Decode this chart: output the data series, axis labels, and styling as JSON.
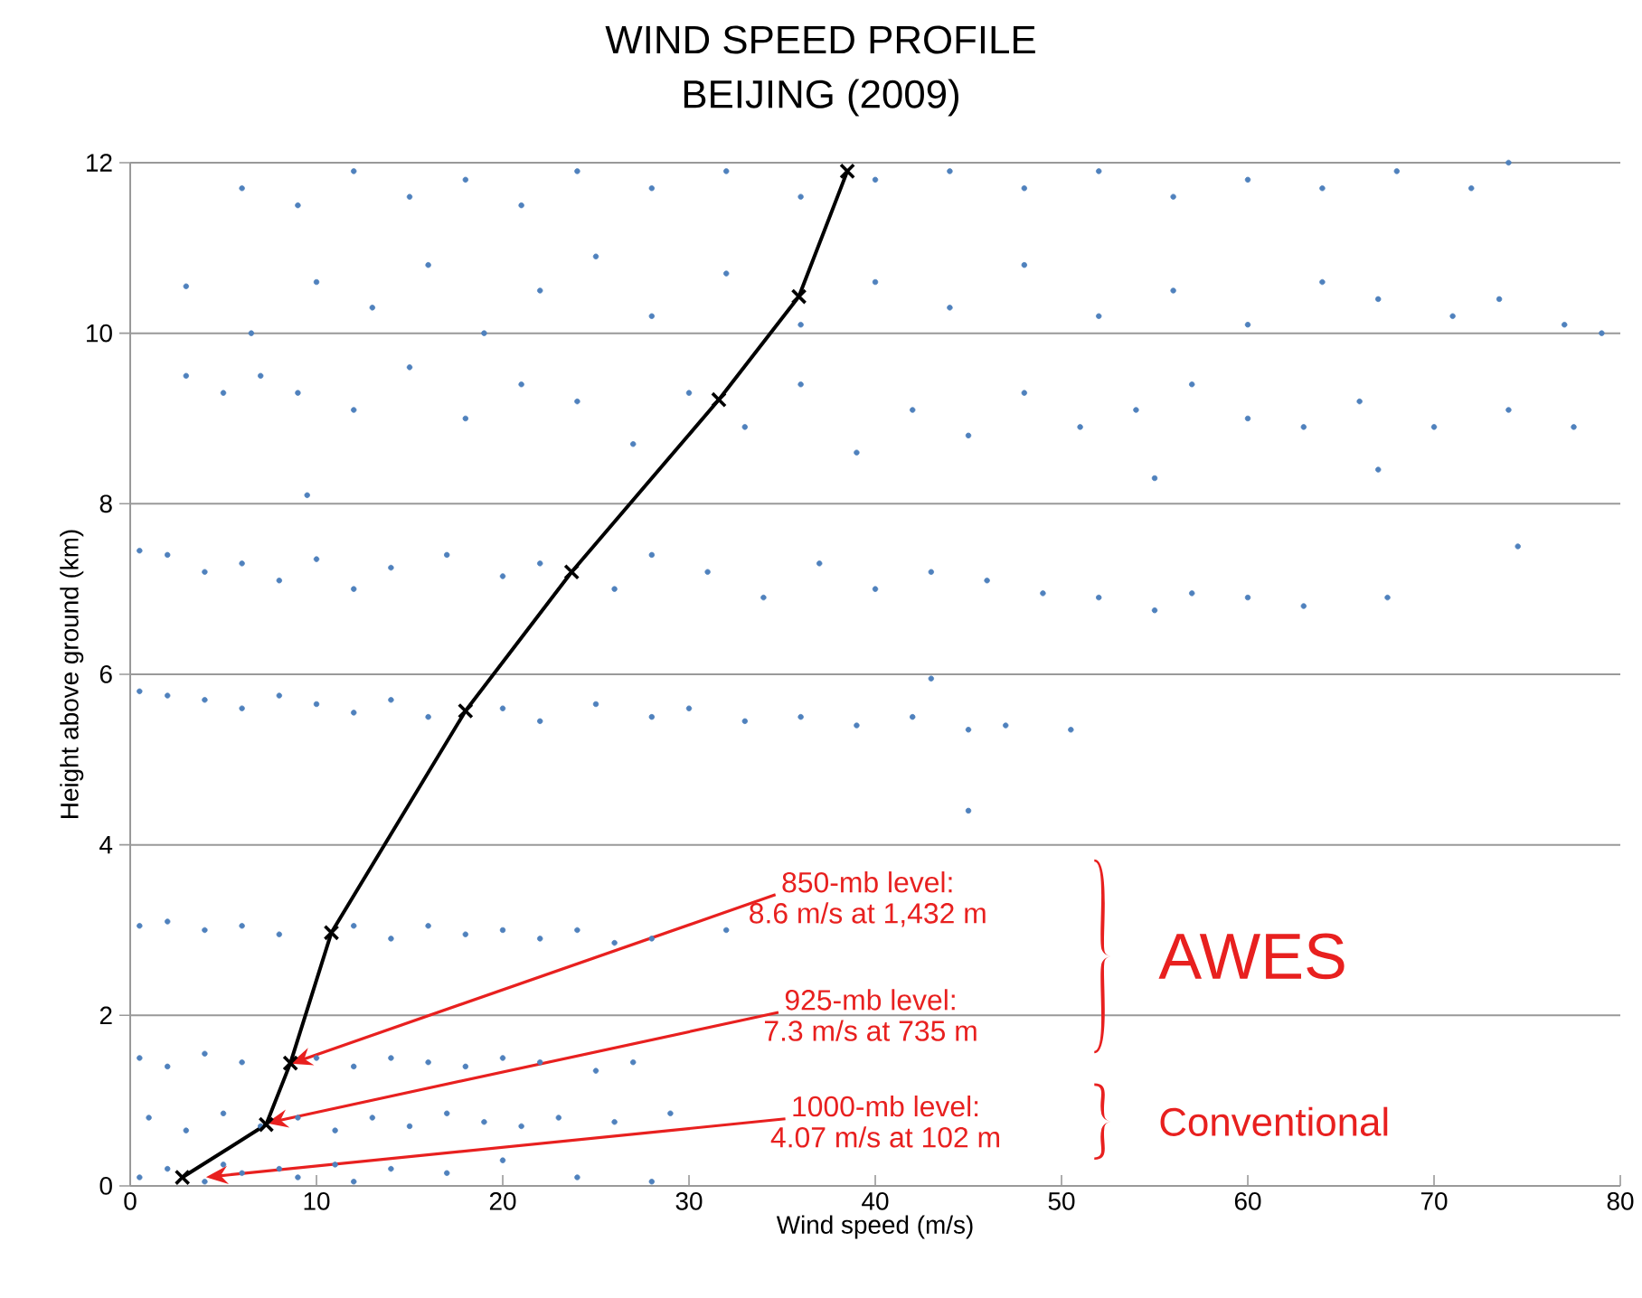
{
  "chart_data": {
    "type": "scatter",
    "title": "WIND SPEED PROFILE",
    "subtitle": "BEIJING (2009)",
    "xlabel": "Wind speed (m/s)",
    "ylabel": "Height above ground (km)",
    "xlim": [
      0,
      80
    ],
    "ylim": [
      0,
      12
    ],
    "xticks": [
      0,
      10,
      20,
      30,
      40,
      50,
      60,
      70,
      80
    ],
    "yticks": [
      0,
      2,
      4,
      6,
      8,
      10,
      12
    ],
    "grid": "y",
    "series": [
      {
        "color": "#4f81bd",
        "marker": "circle",
        "x": [
          0.5,
          2,
          4,
          5,
          6,
          8,
          9,
          11,
          12,
          14,
          17,
          20,
          24,
          28,
          1,
          3,
          5,
          7,
          9,
          11,
          13,
          15,
          17,
          19,
          21,
          23,
          26,
          29,
          0.5,
          2,
          4,
          6,
          10,
          12,
          14,
          16,
          18,
          20,
          22,
          25,
          27,
          0.5,
          2,
          4,
          6,
          8,
          12,
          14,
          16,
          18,
          20,
          22,
          24,
          26,
          28,
          32,
          0.5,
          2,
          4,
          6,
          8,
          10,
          12,
          14,
          16,
          20,
          22,
          25,
          28,
          30,
          33,
          36,
          39,
          42,
          43,
          45,
          47,
          50.5,
          0.5,
          2,
          4,
          6,
          8,
          10,
          12,
          14,
          17,
          20,
          22,
          26,
          28,
          31,
          34,
          37,
          40,
          43,
          46,
          49,
          52,
          55,
          57,
          60,
          63,
          67.5,
          3,
          5,
          7,
          9,
          12,
          15,
          18,
          21,
          24,
          27,
          30,
          33,
          36,
          39,
          42,
          45,
          48,
          51,
          54,
          55,
          57,
          60,
          63,
          66,
          70,
          74,
          77.5,
          3,
          6.5,
          10,
          13,
          16,
          19,
          22,
          25,
          28,
          32,
          36,
          40,
          44,
          48,
          52,
          56,
          60,
          64,
          67,
          71,
          73.5,
          77,
          79,
          6,
          9,
          12,
          15,
          18,
          21,
          24,
          28,
          32,
          36,
          40,
          44,
          48,
          52,
          56,
          60,
          64,
          68,
          72,
          74,
          9.5,
          45,
          74.5,
          67
        ],
        "values": [
          0.1,
          0.2,
          0.05,
          0.25,
          0.15,
          0.2,
          0.1,
          0.25,
          0.05,
          0.2,
          0.15,
          0.3,
          0.1,
          0.05,
          0.8,
          0.65,
          0.85,
          0.7,
          0.8,
          0.65,
          0.8,
          0.7,
          0.85,
          0.75,
          0.7,
          0.8,
          0.75,
          0.85,
          1.5,
          1.4,
          1.55,
          1.45,
          1.5,
          1.4,
          1.5,
          1.45,
          1.4,
          1.5,
          1.45,
          1.35,
          1.45,
          3.05,
          3.1,
          3.0,
          3.05,
          2.95,
          3.05,
          2.9,
          3.05,
          2.95,
          3.0,
          2.9,
          3.0,
          2.85,
          2.9,
          3.0,
          5.8,
          5.75,
          5.7,
          5.6,
          5.75,
          5.65,
          5.55,
          5.7,
          5.5,
          5.6,
          5.45,
          5.65,
          5.5,
          5.6,
          5.45,
          5.5,
          5.4,
          5.5,
          5.95,
          5.35,
          5.4,
          5.35,
          7.45,
          7.4,
          7.2,
          7.3,
          7.1,
          7.35,
          7.0,
          7.25,
          7.4,
          7.15,
          7.3,
          7.0,
          7.4,
          7.2,
          6.9,
          7.3,
          7.0,
          7.2,
          7.1,
          6.95,
          6.9,
          6.75,
          6.95,
          6.9,
          6.8,
          6.9,
          9.5,
          9.3,
          9.5,
          9.3,
          9.1,
          9.6,
          9.0,
          9.4,
          9.2,
          8.7,
          9.3,
          8.9,
          9.4,
          8.6,
          9.1,
          8.8,
          9.3,
          8.9,
          9.1,
          8.3,
          9.4,
          9.0,
          8.9,
          9.2,
          8.9,
          9.1,
          8.9,
          10.55,
          10.0,
          10.6,
          10.3,
          10.8,
          10.0,
          10.5,
          10.9,
          10.2,
          10.7,
          10.1,
          10.6,
          10.3,
          10.8,
          10.2,
          10.5,
          10.1,
          10.6,
          10.4,
          10.2,
          10.4,
          10.1,
          10.0,
          11.7,
          11.5,
          11.9,
          11.6,
          11.8,
          11.5,
          11.9,
          11.7,
          11.9,
          11.6,
          11.8,
          11.9,
          11.7,
          11.9,
          11.6,
          11.8,
          11.7,
          11.9,
          11.7,
          12.0,
          8.1,
          4.4,
          7.5,
          8.4
        ]
      },
      {
        "type": "line",
        "color": "#000000",
        "marker": "cross",
        "line_style": "solid",
        "x": [
          2.8,
          7.3,
          8.6,
          10.8,
          18.0,
          23.7,
          31.6,
          35.9,
          38.5
        ],
        "values": [
          0.1,
          0.72,
          1.44,
          2.97,
          5.57,
          7.2,
          9.22,
          10.43,
          11.9
        ]
      }
    ],
    "annotations": [
      {
        "text": "850-mb level:",
        "x": 8.6,
        "y": 1.432
      },
      "8.6 m/s at 1,432 m",
      {
        "text": "925-mb level:",
        "x": 7.3,
        "y": 0.735
      },
      "7.3 m/s at 735 m",
      {
        "text": "1000-mb level:",
        "x": 4.07,
        "y": 0.102
      },
      "4.07 m/s at 102 m",
      "AWES",
      "Conventional"
    ]
  }
}
